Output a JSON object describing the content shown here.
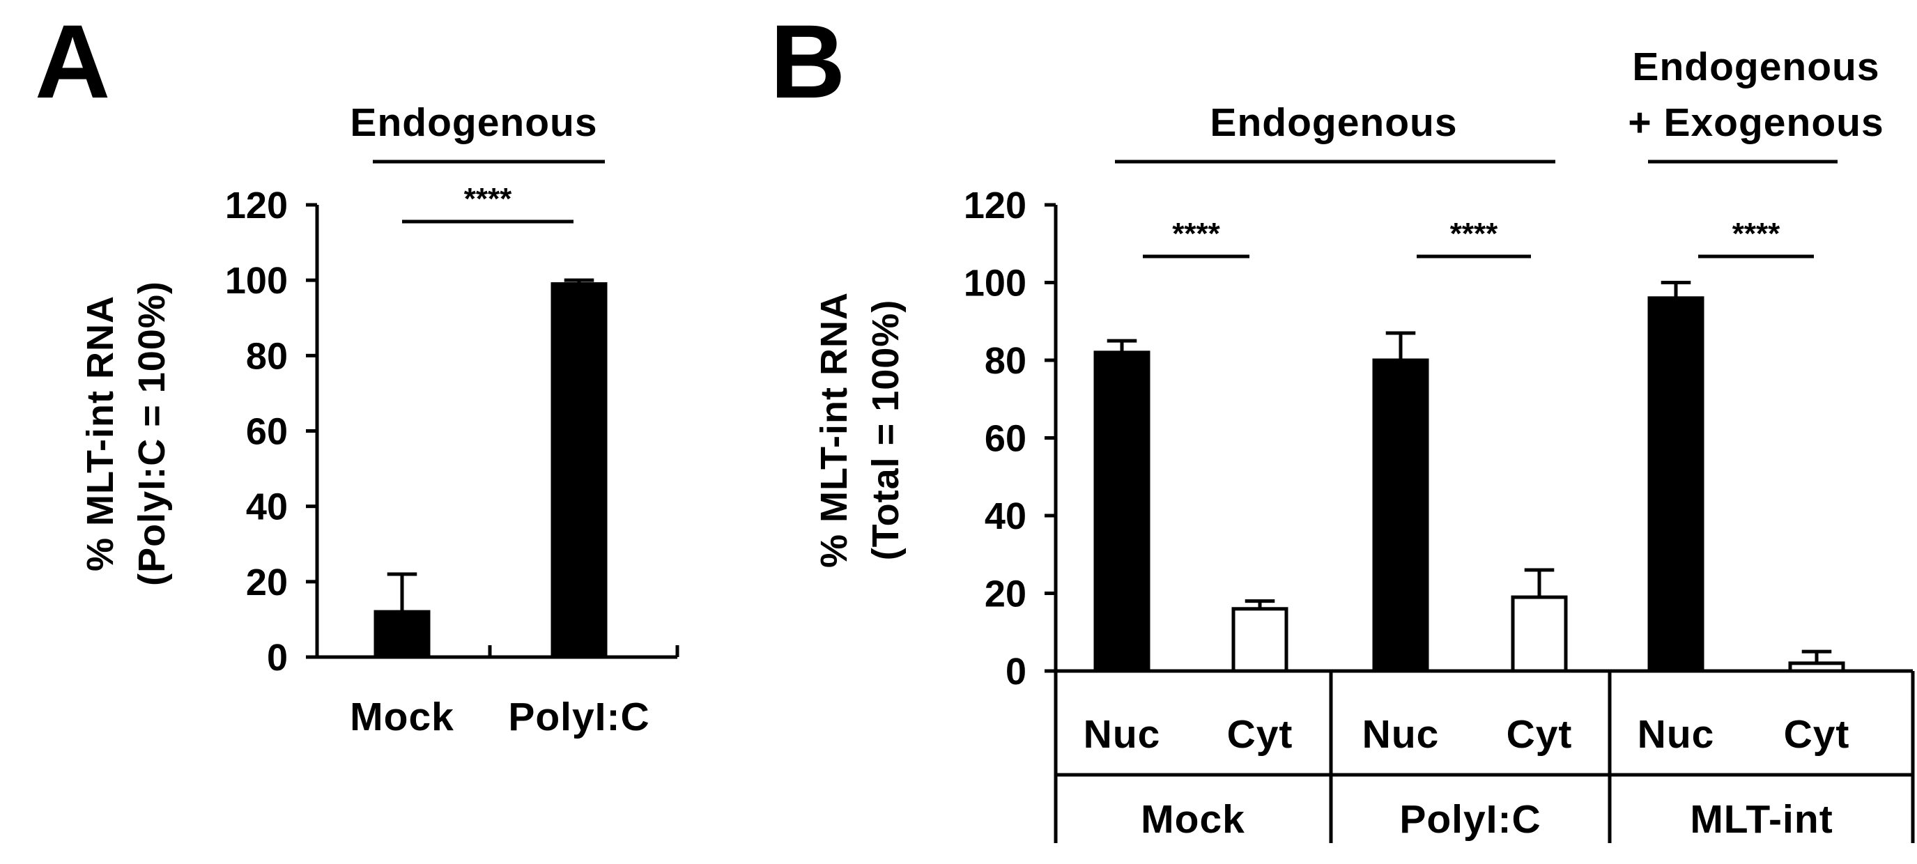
{
  "figure": {
    "panel_a_letter": "A",
    "panel_b_letter": "B"
  },
  "colors": {
    "filled_bar": "#000000",
    "open_bar": "#ffffff",
    "stroke": "#000000"
  },
  "chart_data": [
    {
      "type": "bar",
      "panel": "A",
      "group_label": "Endogenous",
      "ylabel_line1": "% MLT-int RNA",
      "ylabel_line2": "(PolyI:C = 100%)",
      "ylim": [
        0,
        120
      ],
      "yticks": [
        "0",
        "20",
        "40",
        "60",
        "80",
        "100",
        "120"
      ],
      "categories": [
        "Mock",
        "PolyI:C"
      ],
      "values": [
        12,
        99
      ],
      "errors": [
        10,
        1
      ],
      "bar_fill": [
        "filled",
        "filled"
      ],
      "significance": [
        {
          "between": [
            0,
            1
          ],
          "label": "****"
        }
      ],
      "grid": false,
      "legend": "none"
    },
    {
      "type": "bar",
      "panel": "B",
      "group_labels": [
        {
          "text": "Endogenous",
          "spans": [
            0,
            3
          ]
        },
        {
          "text": "Endogenous",
          "text2": "+ Exogenous",
          "spans": [
            4,
            5
          ]
        }
      ],
      "ylabel_line1": "% MLT-int RNA",
      "ylabel_line2": "(Total = 100%)",
      "ylim": [
        0,
        120
      ],
      "yticks": [
        "0",
        "20",
        "40",
        "60",
        "80",
        "100",
        "120"
      ],
      "categories": [
        "Nuc",
        "Cyt",
        "Nuc",
        "Cyt",
        "Nuc",
        "Cyt"
      ],
      "groups": [
        "Mock",
        "PolyI:C",
        "MLT-int"
      ],
      "values": [
        82,
        16,
        80,
        19,
        96,
        2
      ],
      "errors": [
        3,
        2,
        7,
        7,
        4,
        3
      ],
      "bar_fill": [
        "filled",
        "open",
        "filled",
        "open",
        "filled",
        "open"
      ],
      "significance": [
        {
          "between": [
            0,
            1
          ],
          "label": "****"
        },
        {
          "between": [
            2,
            3
          ],
          "label": "****"
        },
        {
          "between": [
            4,
            5
          ],
          "label": "****"
        }
      ],
      "grid": false,
      "legend": "none"
    }
  ]
}
